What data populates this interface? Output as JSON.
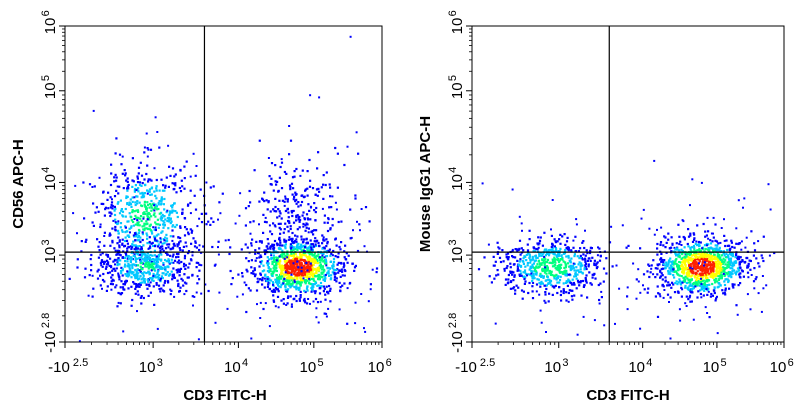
{
  "colors": {
    "frame": "#000000",
    "gate_line": "#000000",
    "density_low": "#0000ff",
    "density_mid": "#00c8ff",
    "density_midhigh": "#00ff80",
    "density_high": "#ffff00",
    "density_peak": "#ff2000"
  },
  "chart_data": [
    {
      "type": "scatter",
      "subtype": "flow-cytometry-pseudocolor-density",
      "xlabel": "CD3 FITC-H",
      "ylabel": "CD56 APC-H",
      "x_scale": "biexponential",
      "y_scale": "biexponential",
      "xlim": [
        -316,
        1000000
      ],
      "ylim": [
        -631,
        1000000
      ],
      "x_ticks": [
        {
          "value": -316,
          "base": "-10",
          "exp": "2.5"
        },
        {
          "value": 1000,
          "base": "10",
          "exp": "3"
        },
        {
          "value": 10000,
          "base": "10",
          "exp": "4"
        },
        {
          "value": 100000,
          "base": "10",
          "exp": "5"
        },
        {
          "value": 1000000,
          "base": "10",
          "exp": "6"
        }
      ],
      "y_ticks": [
        {
          "value": -631,
          "base": "-10",
          "exp": "2.8"
        },
        {
          "value": 1000,
          "base": "10",
          "exp": "3"
        },
        {
          "value": 10000,
          "base": "10",
          "exp": "4"
        },
        {
          "value": 100000,
          "base": "10",
          "exp": "5"
        },
        {
          "value": 1000000,
          "base": "10",
          "exp": "6"
        }
      ],
      "gates": {
        "x": 4000,
        "y": 1100
      },
      "populations": [
        {
          "name": "CD3- CD56+",
          "x_center": 300,
          "y_center": 3500,
          "relative_density": 0.5
        },
        {
          "name": "CD3- CD56-",
          "x_center": 300,
          "y_center": 200,
          "relative_density": 0.45
        },
        {
          "name": "CD3+ CD56-",
          "x_center": 60000,
          "y_center": 180,
          "relative_density": 1.0
        },
        {
          "name": "CD3+ CD56+",
          "x_center": 55000,
          "y_center": 4000,
          "relative_density": 0.15
        }
      ]
    },
    {
      "type": "scatter",
      "subtype": "flow-cytometry-pseudocolor-density",
      "xlabel": "CD3 FITC-H",
      "ylabel": "Mouse IgG1 APC-H",
      "x_scale": "biexponential",
      "y_scale": "biexponential",
      "xlim": [
        -316,
        1000000
      ],
      "ylim": [
        -631,
        1000000
      ],
      "x_ticks": [
        {
          "value": -316,
          "base": "-10",
          "exp": "2.5"
        },
        {
          "value": 1000,
          "base": "10",
          "exp": "3"
        },
        {
          "value": 10000,
          "base": "10",
          "exp": "4"
        },
        {
          "value": 100000,
          "base": "10",
          "exp": "5"
        },
        {
          "value": 1000000,
          "base": "10",
          "exp": "6"
        }
      ],
      "y_ticks": [
        {
          "value": -631,
          "base": "-10",
          "exp": "2.8"
        },
        {
          "value": 1000,
          "base": "10",
          "exp": "3"
        },
        {
          "value": 10000,
          "base": "10",
          "exp": "4"
        },
        {
          "value": 100000,
          "base": "10",
          "exp": "5"
        },
        {
          "value": 1000000,
          "base": "10",
          "exp": "6"
        }
      ],
      "gates": {
        "x": 4000,
        "y": 1100
      },
      "populations": [
        {
          "name": "CD3- IgG1-",
          "x_center": 300,
          "y_center": 200,
          "relative_density": 0.55
        },
        {
          "name": "CD3+ IgG1-",
          "x_center": 60000,
          "y_center": 190,
          "relative_density": 1.0
        }
      ]
    }
  ]
}
